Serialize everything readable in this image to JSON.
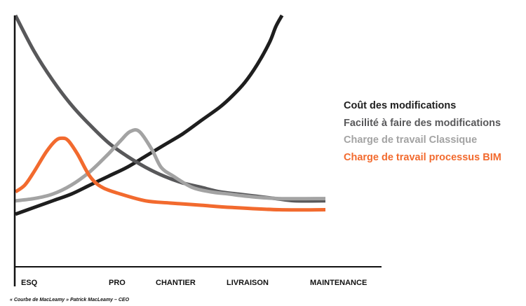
{
  "chart_data": {
    "type": "line",
    "title": "",
    "xlabel": "",
    "ylabel": "",
    "grid": false,
    "legend_position": "right",
    "categories": [
      "ESQ",
      "PRO",
      "CHANTIER",
      "LIVRAISON",
      "MAINTENANCE"
    ],
    "x_range": [
      0,
      100
    ],
    "y_range": [
      0,
      100
    ],
    "series": [
      {
        "name": "Coût des modifications",
        "color": "#1e1e1e",
        "points": [
          [
            0,
            11
          ],
          [
            6,
            14
          ],
          [
            12,
            17
          ],
          [
            18,
            20
          ],
          [
            24,
            24
          ],
          [
            30,
            28
          ],
          [
            36,
            32
          ],
          [
            42,
            37
          ],
          [
            48,
            42
          ],
          [
            54,
            47
          ],
          [
            60,
            53
          ],
          [
            66,
            59
          ],
          [
            70,
            64
          ],
          [
            74,
            70
          ],
          [
            78,
            78
          ],
          [
            82,
            88
          ],
          [
            84,
            95
          ],
          [
            86,
            100
          ]
        ]
      },
      {
        "name": "Facilité à faire des modifications",
        "color": "#58585a",
        "points": [
          [
            0,
            100
          ],
          [
            6,
            84
          ],
          [
            12,
            71
          ],
          [
            18,
            60
          ],
          [
            24,
            51
          ],
          [
            30,
            43
          ],
          [
            36,
            37
          ],
          [
            42,
            32
          ],
          [
            48,
            28
          ],
          [
            54,
            25
          ],
          [
            60,
            23
          ],
          [
            66,
            21
          ],
          [
            72,
            20
          ],
          [
            78,
            19
          ],
          [
            84,
            18
          ],
          [
            90,
            17
          ],
          [
            100,
            17
          ]
        ]
      },
      {
        "name": "Charge de travail Classique",
        "color": "#a3a3a3",
        "points": [
          [
            0,
            17
          ],
          [
            6,
            18
          ],
          [
            12,
            20
          ],
          [
            18,
            24
          ],
          [
            24,
            30
          ],
          [
            30,
            38
          ],
          [
            34,
            44
          ],
          [
            37,
            48
          ],
          [
            40,
            48
          ],
          [
            44,
            40
          ],
          [
            47,
            32
          ],
          [
            51,
            28
          ],
          [
            57,
            23
          ],
          [
            63,
            21
          ],
          [
            69,
            20
          ],
          [
            75,
            19
          ],
          [
            85,
            18
          ],
          [
            100,
            18
          ]
        ]
      },
      {
        "name": "Charge de travail processus BIM",
        "color": "#f26a2e",
        "points": [
          [
            0,
            21
          ],
          [
            3,
            24
          ],
          [
            6,
            30
          ],
          [
            10,
            39
          ],
          [
            13,
            44
          ],
          [
            15,
            45
          ],
          [
            17,
            44
          ],
          [
            20,
            38
          ],
          [
            24,
            28
          ],
          [
            28,
            23
          ],
          [
            34,
            20
          ],
          [
            42,
            17
          ],
          [
            50,
            16
          ],
          [
            60,
            15
          ],
          [
            70,
            14
          ],
          [
            85,
            13
          ],
          [
            100,
            13
          ]
        ]
      }
    ]
  },
  "credit": "« Courbe de MacLeamy » Patrick MacLeamy – CEO"
}
